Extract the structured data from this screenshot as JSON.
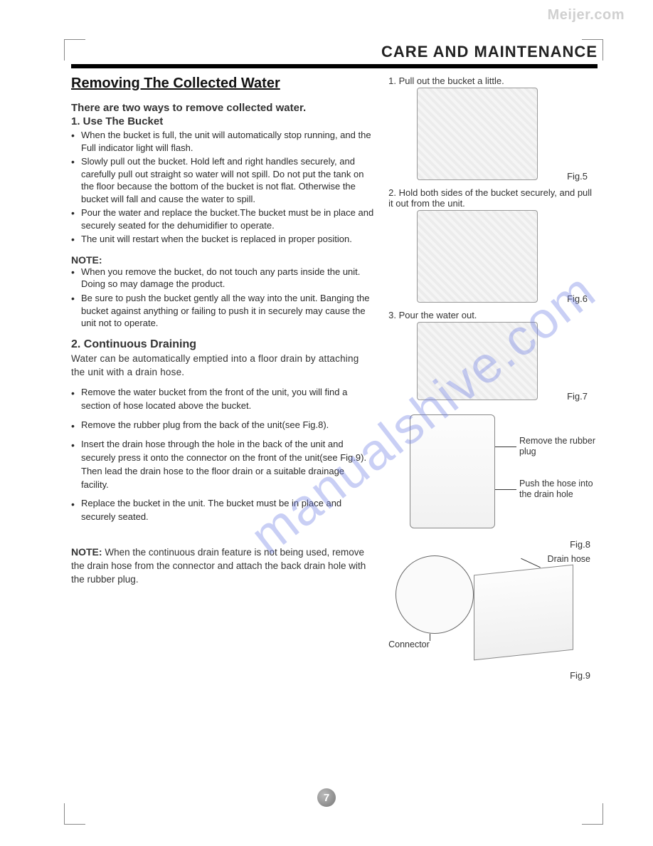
{
  "watermark_top": "Meijer.com",
  "watermark_diag": "manualshive.com",
  "header": "CARE AND MAINTENANCE",
  "section_title": "Removing The Collected Water",
  "intro": "There are two ways to remove collected water.",
  "method1": {
    "title": "1. Use The Bucket",
    "bullets": [
      "When the bucket is full, the unit will automatically stop running, and the Full indicator light will flash.",
      "Slowly pull out the bucket. Hold left and right handles securely, and carefully pull out straight so water will not spill. Do not put the tank on the floor because the bottom of the bucket is not flat. Otherwise the bucket will fall and cause the water to spill.",
      "Pour the water and replace the bucket.The bucket must be in place and securely seated for the dehumidifier to operate.",
      "The unit will restart when the bucket is replaced in proper position."
    ],
    "note_label": "NOTE:",
    "note_bullets": [
      "When you remove the bucket, do not touch any parts inside the unit. Doing so may damage the product.",
      "Be sure to push the bucket gently all the way into the unit. Banging the bucket against anything or failing to push it in securely may cause the unit not to operate."
    ]
  },
  "method2": {
    "title": "2. Continuous Draining",
    "intro": "Water can be automatically emptied into a floor drain by attaching the unit with a drain hose.",
    "bullets": [
      "Remove the water bucket from the front of the unit, you will find a section of hose located above the bucket.",
      "Remove the rubber plug from the back of the unit(see Fig.8).",
      "Insert the drain hose through the hole in the back of the unit and securely press it onto the connector on the front of the unit(see Fig.9). Then lead the drain hose to the floor drain or a suitable drainage facility.",
      "Replace the bucket in the unit. The bucket must be in place and securely seated."
    ],
    "note_label": "NOTE:",
    "note_text": "When the continuous drain feature is not being used, remove the drain hose from the connector and attach the back drain hole with the rubber plug."
  },
  "figures": {
    "f5": {
      "caption": "1. Pull out the bucket a little.",
      "label": "Fig.5"
    },
    "f6": {
      "caption": "2. Hold both sides of the bucket securely, and pull it out from the unit.",
      "label": "Fig.6"
    },
    "f7": {
      "caption": "3. Pour the water out.",
      "label": "Fig.7"
    },
    "f8": {
      "ann1": "Remove the rubber plug",
      "ann2": "Push the hose into the drain hole",
      "label": "Fig.8"
    },
    "f9": {
      "ann1": "Drain hose",
      "ann2": "Connector",
      "label": "Fig.9"
    }
  },
  "page_number": "7"
}
